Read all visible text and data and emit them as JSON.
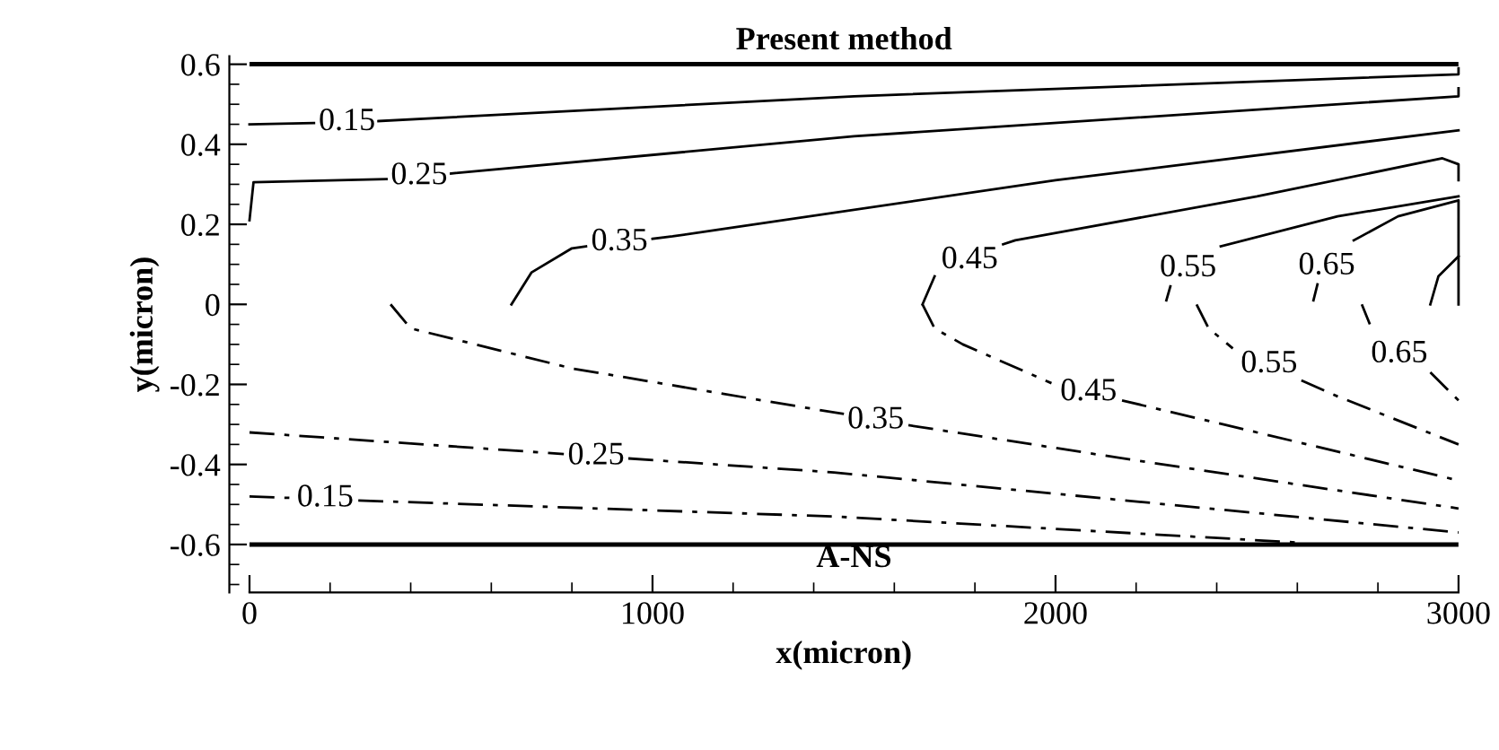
{
  "chart_data": {
    "type": "line",
    "title": "Present method",
    "xlabel": "x(micron)",
    "ylabel": "y(micron)",
    "xlim": [
      -50,
      3000
    ],
    "ylim": [
      -0.72,
      0.62
    ],
    "xticks": [
      0,
      1000,
      2000,
      3000
    ],
    "yticks": [
      -0.6,
      -0.4,
      -0.2,
      0,
      0.2,
      0.4,
      0.6
    ],
    "grid": false,
    "legend": false,
    "marker": "none",
    "series": [
      {
        "color": "#000000",
        "line_style": "solid",
        "x": [
          0,
          160,
          240,
          320,
          1500,
          3000,
          3000
        ],
        "values": [
          0.45,
          0.453,
          null,
          0.458,
          0.52,
          0.575,
          0.59
        ]
      },
      {
        "color": "#000000",
        "line_style": "solid",
        "x": [
          0,
          10,
          340,
          420,
          500,
          1500,
          3000,
          3000
        ],
        "values": [
          0.21,
          0.305,
          0.313,
          null,
          0.327,
          0.42,
          0.52,
          0.54
        ]
      },
      {
        "color": "#000000",
        "line_style": "solid",
        "x": [
          650,
          700,
          800,
          835,
          920,
          1000,
          1050,
          2000,
          3000
        ],
        "values": [
          0,
          0.08,
          0.14,
          0.145,
          null,
          0.164,
          0.17,
          0.31,
          0.435
        ]
      },
      {
        "color": "#000000",
        "line_style": "solid",
        "x": [
          1670,
          1700,
          1790,
          1870,
          1900,
          2500,
          2960,
          3000,
          3000
        ],
        "values": [
          0,
          0.07,
          null,
          0.15,
          0.16,
          0.27,
          0.365,
          0.35,
          0.31
        ]
      },
      {
        "color": "#000000",
        "line_style": "solid",
        "x": [
          2275,
          2285,
          2330,
          2410,
          2700,
          3000
        ],
        "values": [
          0.01,
          0.045,
          null,
          0.145,
          0.22,
          0.27
        ]
      },
      {
        "color": "#000000",
        "line_style": "solid",
        "x": [
          2640,
          2650,
          2700,
          2740,
          2850,
          3000,
          3000
        ],
        "values": [
          0.01,
          0.05,
          null,
          0.16,
          0.22,
          0.26,
          0
        ]
      },
      {
        "color": "#000000",
        "line_style": "solid",
        "x": [
          2930,
          2950,
          3000
        ],
        "values": [
          0,
          0.07,
          0.12
        ]
      },
      {
        "color": "#000000",
        "line_style": "dashed",
        "x": [
          0,
          110,
          190,
          270,
          1450,
          2600
        ],
        "values": [
          -0.48,
          -0.484,
          null,
          -0.49,
          -0.53,
          -0.595
        ]
      },
      {
        "color": "#000000",
        "line_style": "dashed",
        "x": [
          0,
          780,
          860,
          940,
          1450,
          3000
        ],
        "values": [
          -0.32,
          -0.374,
          null,
          -0.385,
          -0.42,
          -0.57
        ]
      },
      {
        "color": "#000000",
        "line_style": "dashed",
        "x": [
          350,
          400,
          800,
          1450,
          1475,
          1555,
          1635,
          2200,
          3000
        ],
        "values": [
          0,
          -0.06,
          -0.16,
          -0.27,
          -0.274,
          null,
          -0.302,
          -0.39,
          -0.51
        ]
      },
      {
        "color": "#000000",
        "line_style": "dashed",
        "x": [
          1670,
          1700,
          1770,
          1990,
          2080,
          2165,
          2500,
          3000
        ],
        "values": [
          0,
          -0.06,
          -0.1,
          -0.197,
          null,
          -0.24,
          -0.32,
          -0.44
        ]
      },
      {
        "color": "#000000",
        "line_style": "dashed",
        "x": [
          2350,
          2380,
          2440,
          2530,
          2610,
          2700,
          3000
        ],
        "values": [
          0,
          -0.06,
          -0.11,
          null,
          -0.19,
          -0.23,
          -0.35
        ]
      },
      {
        "color": "#000000",
        "line_style": "dashed",
        "x": [
          2760,
          2780,
          2850,
          2930,
          3000
        ],
        "values": [
          0,
          -0.05,
          null,
          -0.17,
          -0.24
        ]
      }
    ],
    "ref_lines": [
      {
        "axis": "y",
        "value": 0.6,
        "color": "#000000",
        "line_style": "solid"
      },
      {
        "axis": "y",
        "value": -0.6,
        "color": "#000000",
        "line_style": "solid"
      }
    ],
    "annotations": [
      {
        "text": "0.15",
        "x": 242,
        "y": 0.455
      },
      {
        "text": "0.25",
        "x": 421,
        "y": 0.32
      },
      {
        "text": "0.35",
        "x": 918,
        "y": 0.155
      },
      {
        "text": "0.45",
        "x": 1787,
        "y": 0.11
      },
      {
        "text": "0.55",
        "x": 2329,
        "y": 0.09
      },
      {
        "text": "0.65",
        "x": 2673,
        "y": 0.095
      },
      {
        "text": "0.15",
        "x": 188,
        "y": -0.485
      },
      {
        "text": "0.25",
        "x": 860,
        "y": -0.38
      },
      {
        "text": "0.35",
        "x": 1554,
        "y": -0.29
      },
      {
        "text": "0.45",
        "x": 2082,
        "y": -0.22
      },
      {
        "text": "0.55",
        "x": 2530,
        "y": -0.15
      },
      {
        "text": "0.65",
        "x": 2853,
        "y": -0.125
      },
      "A-NS"
    ]
  }
}
